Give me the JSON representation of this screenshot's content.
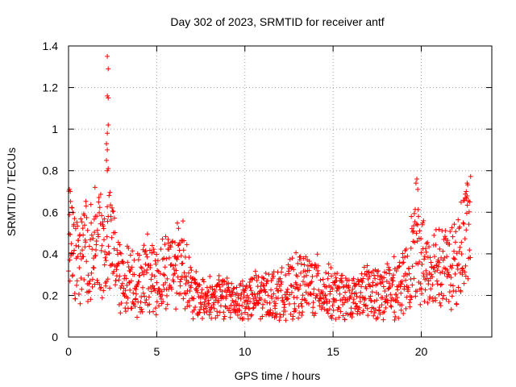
{
  "chart_data": {
    "type": "scatter",
    "title": "Day 302 of 2023, SRMTID for receiver antf",
    "xlabel": "GPS time / hours",
    "ylabel": "SRMTID / TECUs",
    "xlim": [
      0,
      24
    ],
    "ylim": [
      0,
      1.4
    ],
    "x_ticks": [
      0,
      5,
      10,
      15,
      20
    ],
    "x_tick_labels": [
      "0",
      "5",
      "10",
      "15",
      "20"
    ],
    "y_ticks": [
      0,
      0.2,
      0.4,
      0.6,
      0.8,
      1.0,
      1.2,
      1.4
    ],
    "y_tick_labels": [
      "0",
      "0.2",
      "0.4",
      "0.6",
      "0.8",
      "1",
      "1.2",
      "1.4"
    ],
    "grid": true,
    "marker": "+",
    "marker_color": "#ff0000",
    "x_range": [
      0,
      22.8
    ],
    "series": [
      {
        "name": "SRMTID",
        "profile": [
          [
            0.0,
            0.45
          ],
          [
            0.5,
            0.38
          ],
          [
            1.0,
            0.42
          ],
          [
            1.5,
            0.45
          ],
          [
            2.0,
            0.42
          ],
          [
            2.5,
            0.45
          ],
          [
            3.0,
            0.25
          ],
          [
            3.5,
            0.3
          ],
          [
            4.0,
            0.25
          ],
          [
            4.5,
            0.32
          ],
          [
            5.0,
            0.27
          ],
          [
            5.5,
            0.32
          ],
          [
            6.0,
            0.35
          ],
          [
            6.5,
            0.38
          ],
          [
            7.0,
            0.2
          ],
          [
            8.0,
            0.18
          ],
          [
            9.0,
            0.18
          ],
          [
            10.0,
            0.18
          ],
          [
            11.0,
            0.2
          ],
          [
            12.0,
            0.2
          ],
          [
            13.0,
            0.25
          ],
          [
            14.0,
            0.25
          ],
          [
            15.0,
            0.2
          ],
          [
            16.0,
            0.18
          ],
          [
            17.0,
            0.22
          ],
          [
            18.0,
            0.22
          ],
          [
            19.0,
            0.25
          ],
          [
            19.5,
            0.4
          ],
          [
            20.0,
            0.38
          ],
          [
            20.5,
            0.32
          ],
          [
            21.0,
            0.38
          ],
          [
            21.5,
            0.32
          ],
          [
            22.0,
            0.35
          ],
          [
            22.5,
            0.48
          ],
          [
            22.8,
            0.55
          ]
        ],
        "spikes": [
          [
            2.2,
            1.35
          ],
          [
            2.25,
            1.29
          ],
          [
            2.2,
            1.16
          ],
          [
            2.25,
            1.15
          ],
          [
            2.25,
            1.02
          ],
          [
            2.2,
            0.98
          ],
          [
            2.15,
            0.93
          ],
          [
            2.2,
            0.9
          ],
          [
            2.15,
            0.85
          ],
          [
            2.25,
            0.81
          ],
          [
            2.2,
            0.8
          ],
          [
            0.05,
            0.71
          ],
          [
            0.1,
            0.7
          ],
          [
            1.5,
            0.72
          ],
          [
            19.75,
            0.76
          ],
          [
            19.7,
            0.74
          ],
          [
            19.8,
            0.71
          ],
          [
            22.6,
            0.74
          ],
          [
            22.55,
            0.7
          ],
          [
            22.5,
            0.67
          ]
        ]
      }
    ]
  }
}
